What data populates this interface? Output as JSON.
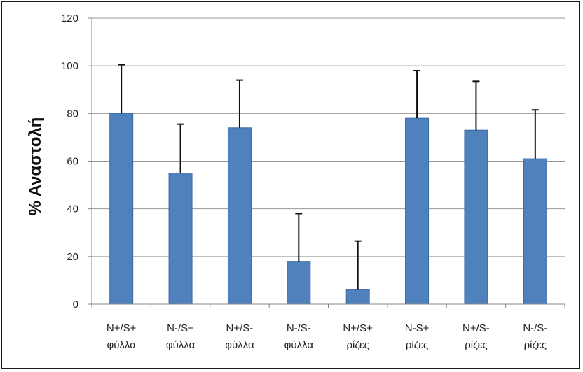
{
  "chart_data": {
    "type": "bar",
    "ylabel": "% Αναστολή",
    "ylim": [
      0,
      120
    ],
    "yticks": [
      0,
      20,
      40,
      60,
      80,
      100,
      120
    ],
    "grid": true,
    "categories": [
      [
        "N+/S+",
        "φύλλα"
      ],
      [
        "N-/S+",
        "φύλλα"
      ],
      [
        "N+/S-",
        "φύλλα"
      ],
      [
        "N-/S-",
        "φύλλα"
      ],
      [
        "N+/S+",
        "ρίζες"
      ],
      [
        "N-S+",
        "ρίζες"
      ],
      [
        "N+/S-",
        "ρίζες"
      ],
      [
        "N-/S-",
        "ρίζες"
      ]
    ],
    "values": [
      80,
      55,
      74,
      18,
      6,
      78,
      73,
      61
    ],
    "error_upper": [
      100.5,
      75.5,
      94,
      38,
      26.5,
      98,
      93.5,
      81.5
    ],
    "colors": {
      "bar": "#4f81bd",
      "bar_edge": "#3c6aa3",
      "grid": "#999999",
      "axis": "#888888",
      "error": "#111111"
    }
  }
}
